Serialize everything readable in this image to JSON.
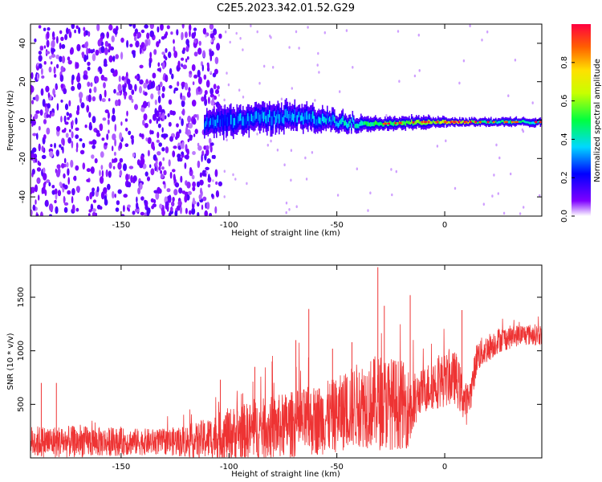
{
  "title": "C2E5.2023.342.01.52.G29",
  "chart_data": [
    {
      "type": "heatmap",
      "name": "spectrogram",
      "xlabel": "Height of straight line (km)",
      "ylabel": "Frequency (Hz)",
      "xlim": [
        -192,
        45
      ],
      "ylim": [
        -50,
        50
      ],
      "xticks": [
        -150,
        -100,
        -50,
        0
      ],
      "yticks": [
        -40,
        -20,
        0,
        20,
        40
      ],
      "colorbar": {
        "label": "Normalized spectral amplitude",
        "range": [
          0,
          1
        ],
        "ticks": [
          0.0,
          0.2,
          0.4,
          0.6,
          0.8
        ],
        "colormap": [
          "#ffffff",
          "#7f00ff",
          "#0000ff",
          "#00d8ff",
          "#00ff40",
          "#c8ff00",
          "#ffe000",
          "#ff6000",
          "#ff0040"
        ]
      },
      "noise_region_end_km": -112,
      "signal_band": [
        {
          "x": -112,
          "center_hz": -2,
          "half_width_hz": 6,
          "amplitude": 0.25
        },
        {
          "x": -90,
          "center_hz": 1,
          "half_width_hz": 7,
          "amplitude": 0.3
        },
        {
          "x": -70,
          "center_hz": 2,
          "half_width_hz": 6,
          "amplitude": 0.3
        },
        {
          "x": -50,
          "center_hz": -1,
          "half_width_hz": 5,
          "amplitude": 0.35
        },
        {
          "x": -30,
          "center_hz": -2,
          "half_width_hz": 3,
          "amplitude": 0.5
        },
        {
          "x": -10,
          "center_hz": -1,
          "half_width_hz": 3,
          "amplitude": 0.55
        },
        {
          "x": 5,
          "center_hz": -1,
          "half_width_hz": 2,
          "amplitude": 0.7
        },
        {
          "x": 20,
          "center_hz": -1,
          "half_width_hz": 2,
          "amplitude": 0.45
        },
        {
          "x": 45,
          "center_hz": -1,
          "half_width_hz": 2,
          "amplitude": 0.4
        }
      ]
    },
    {
      "type": "line",
      "name": "snr",
      "xlabel": "Height of straight line (km)",
      "ylabel": "SNR (10 * v/v)",
      "xlim": [
        -192,
        45
      ],
      "ylim": [
        0,
        1800
      ],
      "xticks": [
        -150,
        -100,
        -50,
        0
      ],
      "yticks": [
        500,
        1000,
        1500
      ],
      "color": "#ee3333",
      "envelope": {
        "x": [
          -192,
          -170,
          -150,
          -130,
          -115,
          -100,
          -80,
          -60,
          -50,
          -40,
          -30,
          -20,
          -15,
          -12,
          -5,
          5,
          10,
          12,
          15,
          25,
          35,
          45
        ],
        "mean": [
          150,
          150,
          150,
          150,
          160,
          220,
          280,
          350,
          400,
          500,
          520,
          500,
          450,
          600,
          700,
          750,
          500,
          600,
          950,
          1100,
          1150,
          1150
        ],
        "spread": [
          150,
          150,
          130,
          120,
          170,
          250,
          300,
          330,
          350,
          400,
          450,
          420,
          350,
          200,
          250,
          250,
          200,
          150,
          150,
          120,
          100,
          100
        ]
      },
      "spikes": [
        {
          "x": -187,
          "y": 700
        },
        {
          "x": -180,
          "y": 700
        },
        {
          "x": -104,
          "y": 730
        },
        {
          "x": -88,
          "y": 850
        },
        {
          "x": -80,
          "y": 900
        },
        {
          "x": -69,
          "y": 1100
        },
        {
          "x": -63,
          "y": 1390
        },
        {
          "x": -52,
          "y": 1020
        },
        {
          "x": -43,
          "y": 1080
        },
        {
          "x": -31,
          "y": 1780
        },
        {
          "x": -28,
          "y": 1420
        },
        {
          "x": -16,
          "y": 1520
        },
        {
          "x": 8,
          "y": 1380
        },
        {
          "x": 16,
          "y": 900
        }
      ]
    }
  ]
}
